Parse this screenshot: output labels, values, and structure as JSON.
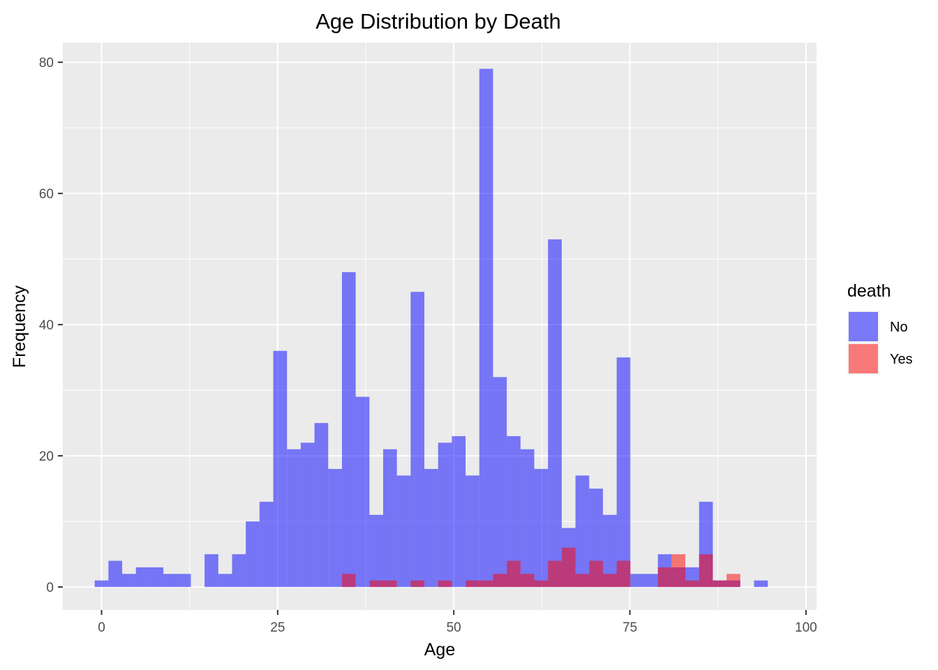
{
  "chart_data": {
    "type": "bar",
    "title": "Age Distribution by Death",
    "xlabel": "Age",
    "ylabel": "Frequency",
    "xlim": [
      -5.5,
      101.5
    ],
    "ylim": [
      -3.5,
      83
    ],
    "x_ticks": [
      0,
      25,
      50,
      75,
      100
    ],
    "y_ticks": [
      0,
      20,
      40,
      60,
      80
    ],
    "bin_width": 1.95,
    "bin_start": -0.975,
    "grid": true,
    "legend": {
      "title": "death",
      "position": "right"
    },
    "series": [
      {
        "name": "No",
        "color": "#0000ff",
        "opacity": 0.5,
        "counts": [
          1,
          4,
          2,
          3,
          3,
          2,
          2,
          0,
          5,
          2,
          5,
          10,
          13,
          36,
          21,
          22,
          25,
          18,
          48,
          29,
          11,
          21,
          17,
          45,
          18,
          22,
          23,
          17,
          79,
          32,
          23,
          21,
          18,
          53,
          9,
          17,
          15,
          11,
          35,
          2,
          2,
          5,
          3,
          3,
          13,
          1,
          1,
          0,
          1
        ]
      },
      {
        "name": "Yes",
        "color": "#ff0000",
        "opacity": 0.5,
        "counts": [
          0,
          0,
          0,
          0,
          0,
          0,
          0,
          0,
          0,
          0,
          0,
          0,
          0,
          0,
          0,
          0,
          0,
          0,
          2,
          0,
          1,
          1,
          0,
          1,
          0,
          1,
          0,
          1,
          1,
          2,
          4,
          2,
          1,
          4,
          6,
          2,
          4,
          2,
          4,
          0,
          0,
          3,
          5,
          1,
          5,
          1,
          2,
          0,
          0
        ]
      }
    ]
  }
}
